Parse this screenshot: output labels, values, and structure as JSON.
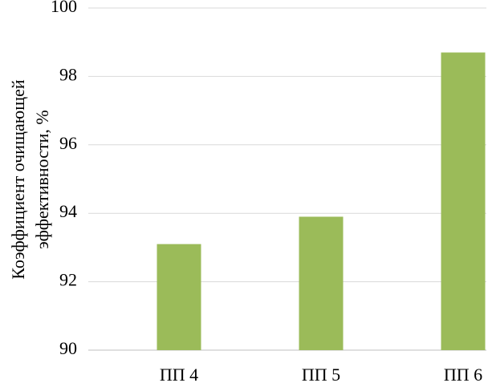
{
  "chart_data": {
    "type": "bar",
    "ylabel": [
      "Коэффициент очищающей",
      "эффективности, %"
    ],
    "categories": [
      "ПП 4",
      "ПП 5",
      "ПП 6"
    ],
    "values": [
      93.1,
      93.9,
      98.7
    ],
    "color": "#9bbb59",
    "ylim": [
      90,
      100
    ],
    "yticks": [
      90,
      92,
      94,
      96,
      98,
      100
    ],
    "grid": true
  }
}
